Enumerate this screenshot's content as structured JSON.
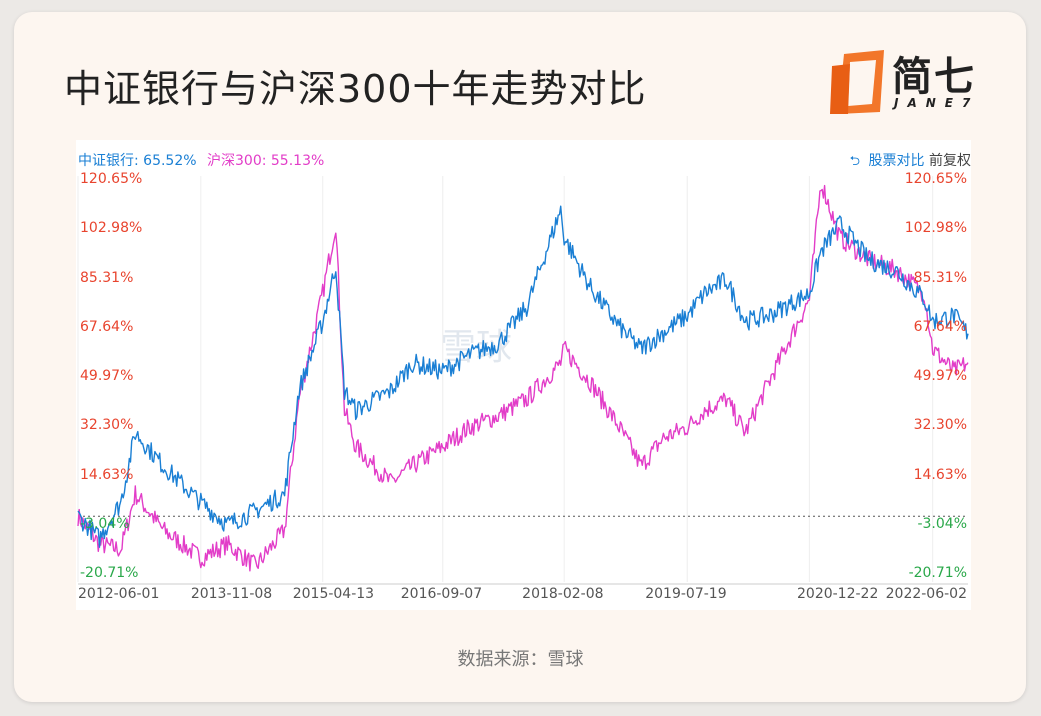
{
  "title": "中证银行与沪深300十年走势对比",
  "logo": {
    "text": "简七",
    "sub": "JANE7"
  },
  "legend": {
    "series_a": "中证银行: 65.52%",
    "series_b": "沪深300: 55.13%"
  },
  "toolbar": {
    "compare": "股票对比",
    "adjust": "前复权"
  },
  "watermark": "雪球",
  "source": "数据来源：雪球",
  "colors": {
    "series_a": "#1a7fd4",
    "series_b": "#e23dc8",
    "positive": "#e8442e",
    "negative": "#2aa84a"
  },
  "chart_data": {
    "type": "line",
    "ylim": [
      -20.71,
      120.65
    ],
    "yticks": [
      "120.65%",
      "102.98%",
      "85.31%",
      "67.64%",
      "49.97%",
      "32.30%",
      "14.63%",
      "-3.04%",
      "-20.71%"
    ],
    "xticks": [
      "2012-06-01",
      "2013-11-08",
      "2015-04-13",
      "2016-09-07",
      "2018-02-08",
      "2019-07-19",
      "2020-12-22",
      "2022-06-02"
    ],
    "baseline": 0,
    "x": [
      "2012-06-01",
      "2012-09-01",
      "2012-12-01",
      "2013-02-01",
      "2013-06-01",
      "2013-11-08",
      "2014-03-01",
      "2014-07-01",
      "2014-11-01",
      "2015-01-01",
      "2015-04-13",
      "2015-06-08",
      "2015-07-15",
      "2015-09-01",
      "2016-01-28",
      "2016-05-01",
      "2016-09-07",
      "2017-01-01",
      "2017-05-01",
      "2017-09-01",
      "2018-01-24",
      "2018-02-08",
      "2018-06-01",
      "2018-10-01",
      "2019-01-03",
      "2019-04-08",
      "2019-07-19",
      "2019-10-01",
      "2020-01-01",
      "2020-03-23",
      "2020-07-01",
      "2020-12-22",
      "2021-02-10",
      "2021-05-01",
      "2021-09-01",
      "2021-12-31",
      "2022-04-27",
      "2022-06-02",
      "2022-09-01",
      "2022-10-31"
    ],
    "series": [
      {
        "name": "中证银行",
        "values": [
          0,
          -8,
          5,
          30,
          18,
          5,
          -3,
          2,
          8,
          45,
          70,
          90,
          45,
          38,
          45,
          55,
          52,
          58,
          62,
          75,
          110,
          100,
          82,
          68,
          60,
          66,
          72,
          80,
          85,
          70,
          72,
          80,
          95,
          105,
          92,
          88,
          78,
          70,
          72,
          65.52
        ]
      },
      {
        "name": "沪深300",
        "values": [
          0,
          -10,
          -12,
          8,
          -5,
          -15,
          -10,
          -18,
          -5,
          42,
          80,
          105,
          38,
          25,
          12,
          18,
          25,
          32,
          36,
          42,
          55,
          60,
          48,
          32,
          18,
          28,
          32,
          38,
          42,
          30,
          48,
          78,
          120,
          100,
          92,
          88,
          80,
          60,
          52,
          55.13
        ]
      }
    ]
  }
}
